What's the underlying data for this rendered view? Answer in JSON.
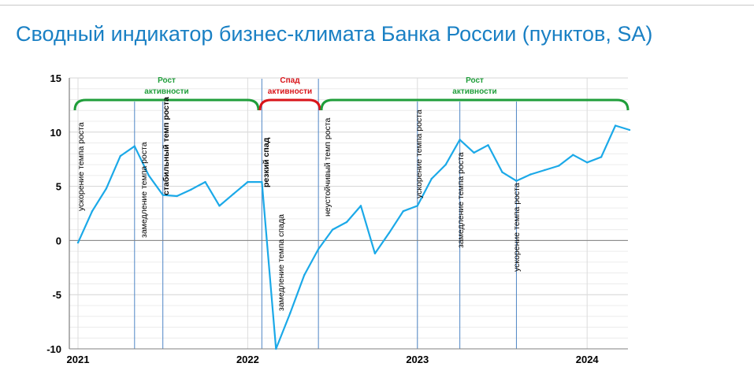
{
  "title": "Сводный индикатор бизнес-климата Банка России (пунктов, SA)",
  "colors": {
    "line": "#1ba9e8",
    "green": "#1f9e3a",
    "red": "#d9141a",
    "title": "#1a80c4",
    "vline": "#4f86c6"
  },
  "chart_data": {
    "type": "line",
    "title": "Сводный индикатор бизнес-климата Банка России (пунктов, SA)",
    "ylim": [
      -10,
      15
    ],
    "yticks": [
      "15",
      "10",
      "5",
      "0",
      "-5",
      "-10"
    ],
    "xticks": [
      "2021",
      "2022",
      "2023",
      "2024"
    ],
    "grid": true,
    "series": [
      {
        "x": [
          "2021-01",
          "2021-02",
          "2021-03",
          "2021-04",
          "2021-05",
          "2021-06",
          "2021-07",
          "2021-08",
          "2021-09",
          "2021-10",
          "2021-11",
          "2021-12",
          "2022-01",
          "2022-02",
          "2022-03",
          "2022-04",
          "2022-05",
          "2022-06",
          "2022-07",
          "2022-08",
          "2022-09",
          "2022-10",
          "2022-11",
          "2022-12",
          "2023-01",
          "2023-02",
          "2023-03",
          "2023-04",
          "2023-05",
          "2023-06",
          "2023-07",
          "2023-08",
          "2023-09",
          "2023-10",
          "2023-11",
          "2023-12",
          "2024-01",
          "2024-02",
          "2024-03",
          "2024-04"
        ],
        "values": [
          -0.2,
          2.7,
          4.8,
          7.8,
          8.7,
          6.0,
          4.2,
          4.1,
          4.7,
          5.4,
          3.2,
          4.3,
          5.4,
          5.4,
          -10.0,
          -6.7,
          -3.2,
          -0.8,
          1.0,
          1.7,
          3.2,
          -1.2,
          0.7,
          2.7,
          3.2,
          5.7,
          7.0,
          9.3,
          8.1,
          8.8,
          6.3,
          5.5,
          6.1,
          6.5,
          6.9,
          7.9,
          7.2,
          7.7,
          10.6,
          10.2
        ]
      }
    ],
    "vlines": [
      "2021-05",
      "2021-07",
      "2022-02",
      "2022-06",
      "2023-01",
      "2023-04",
      "2023-08"
    ],
    "annotations": [
      {
        "text": "ускорение темпа роста",
        "bold": false
      },
      {
        "text": "замедление темпа роста",
        "bold": false
      },
      {
        "text": "стабильный темп роста",
        "bold": true
      },
      {
        "text": "резкий спад",
        "bold": true
      },
      {
        "text": "замедление темпа спада",
        "bold": false
      },
      {
        "text": "неустойчивый темп роста",
        "bold": false
      },
      {
        "text": "ускорение темпа роста",
        "bold": false
      },
      {
        "text": "замедление темпа роста",
        "bold": false
      },
      {
        "text": "ускорение темпа роста",
        "bold": false
      }
    ],
    "phases": [
      {
        "lines": [
          "Рост",
          "активности"
        ],
        "color": "green"
      },
      {
        "lines": [
          "Спад",
          "активности"
        ],
        "color": "red"
      },
      {
        "lines": [
          "Рост",
          "активности"
        ],
        "color": "green"
      }
    ]
  }
}
